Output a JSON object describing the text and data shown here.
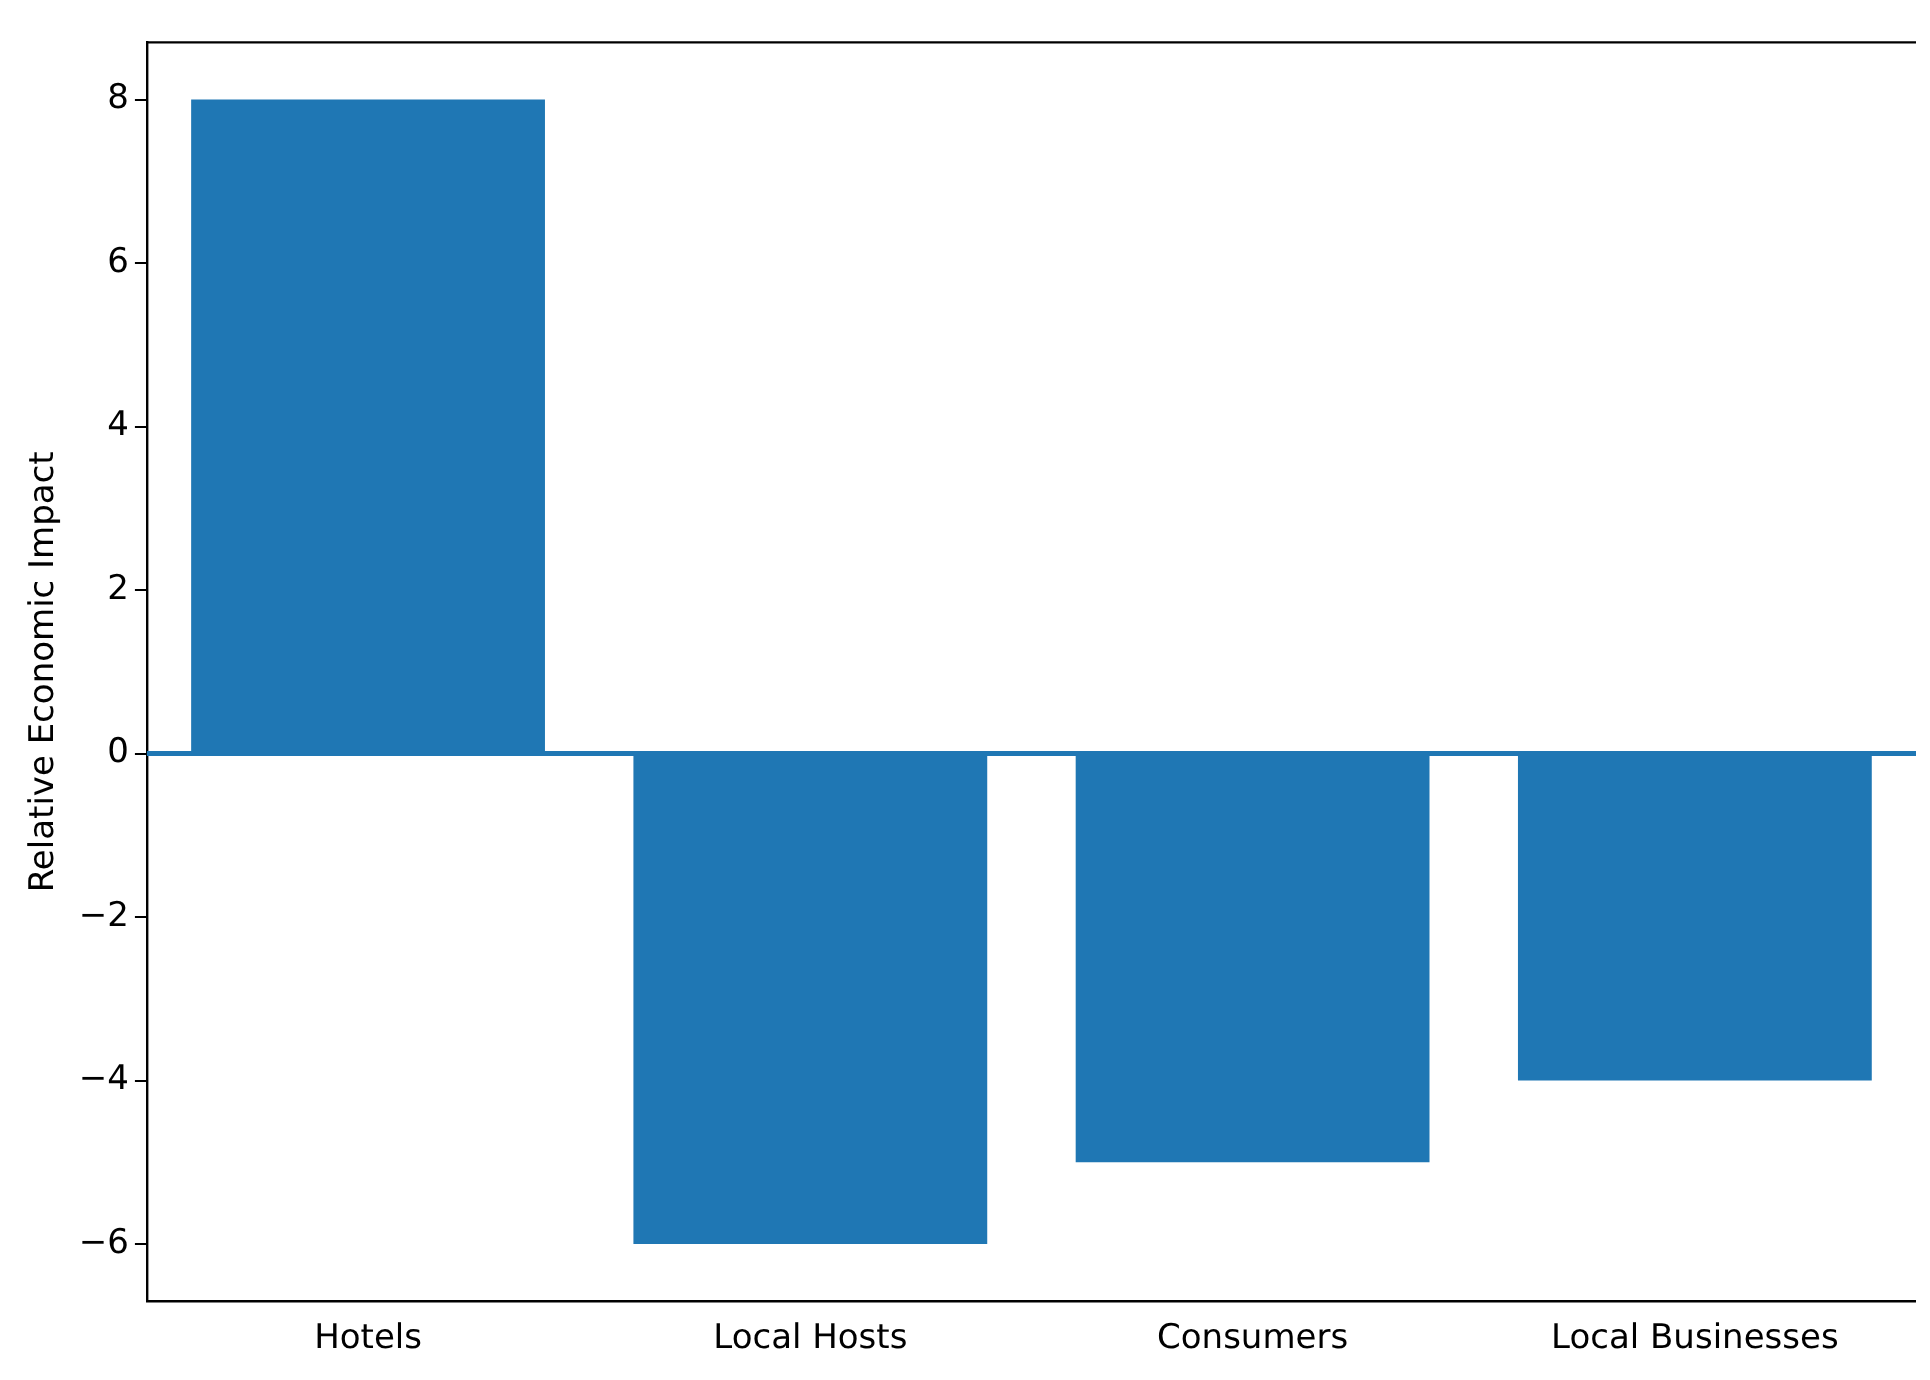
{
  "chart_data": {
    "type": "bar",
    "ylabel": "Relative Economic Impact",
    "categories": [
      "Hotels",
      "Local Hosts",
      "Consumers",
      "Local Businesses"
    ],
    "values": [
      8,
      -6,
      -5,
      -4
    ],
    "color": "#1f77b4",
    "ylim": [
      -6.7,
      8.7
    ],
    "yticks": [
      {
        "value": -6,
        "label": "−6"
      },
      {
        "value": -4,
        "label": "−4"
      },
      {
        "value": -2,
        "label": "−2"
      },
      0,
      2,
      4,
      6,
      8
    ],
    "ref_lines": [
      {
        "axis": "y",
        "value": 0,
        "color": "#1f77b4"
      }
    ],
    "grid": false,
    "legend": false
  }
}
